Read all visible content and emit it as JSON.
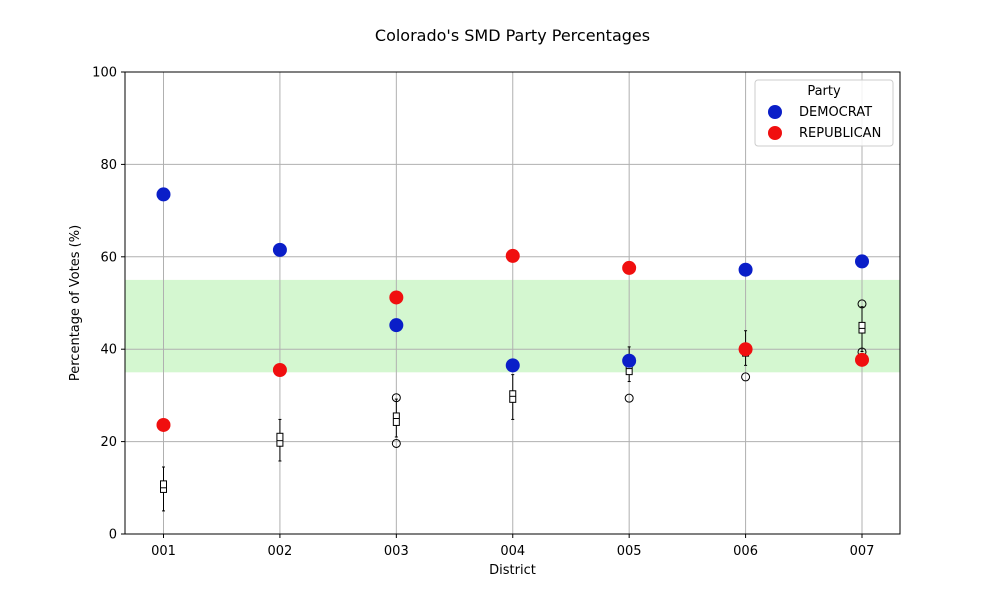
{
  "chart_data": {
    "type": "scatter",
    "title": "Colorado's SMD Party Percentages",
    "xlabel": "District",
    "ylabel": "Percentage of Votes (%)",
    "categories": [
      "001",
      "002",
      "003",
      "004",
      "005",
      "006",
      "007"
    ],
    "ylim": [
      0,
      100
    ],
    "yticks": [
      0,
      20,
      40,
      60,
      80,
      100
    ],
    "grid": true,
    "legend": {
      "title": "Party",
      "placement": "top-right"
    },
    "highlight_band": {
      "y0": 35,
      "y1": 55,
      "color": "#d4f7d0"
    },
    "series": [
      {
        "name": "DEMOCRAT",
        "color": "#0a1ec8",
        "values": [
          73.5,
          61.5,
          45.2,
          36.5,
          37.5,
          57.2,
          59.0
        ]
      },
      {
        "name": "REPUBLICAN",
        "color": "#f00f0f",
        "values": [
          23.6,
          35.5,
          51.2,
          60.2,
          57.6,
          40.0,
          37.7
        ]
      }
    ],
    "boxplots": [
      {
        "whislo": 5.0,
        "q1": 9.0,
        "med": 10.0,
        "q3": 11.5,
        "whishi": 14.5,
        "fliers": []
      },
      {
        "whislo": 15.8,
        "q1": 19.0,
        "med": 20.2,
        "q3": 21.8,
        "whishi": 24.8,
        "fliers": []
      },
      {
        "whislo": 21.0,
        "q1": 23.5,
        "med": 25.0,
        "q3": 26.2,
        "whishi": 29.2,
        "fliers": [
          19.6,
          29.5
        ]
      },
      {
        "whislo": 24.8,
        "q1": 28.5,
        "med": 29.8,
        "q3": 31.0,
        "whishi": 34.5,
        "fliers": []
      },
      {
        "whislo": 33.0,
        "q1": 34.5,
        "med": 35.8,
        "q3": 37.0,
        "whishi": 40.5,
        "fliers": [
          29.4
        ]
      },
      {
        "whislo": 36.5,
        "q1": 38.5,
        "med": 39.8,
        "q3": 41.0,
        "whishi": 44.0,
        "fliers": [
          34.0
        ]
      },
      {
        "whislo": 39.5,
        "q1": 43.5,
        "med": 44.5,
        "q3": 45.8,
        "whishi": 49.2,
        "fliers": [
          49.8,
          39.4
        ]
      }
    ]
  }
}
